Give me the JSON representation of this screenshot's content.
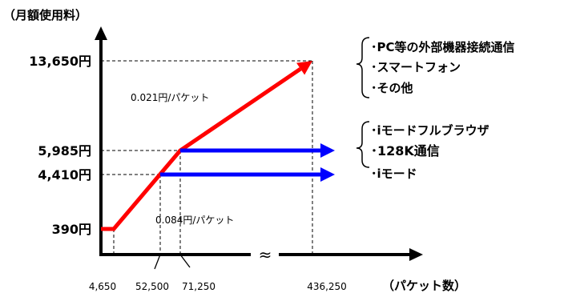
{
  "chart_data": {
    "type": "line",
    "ylabel": "（月額使用料）",
    "xlabel": "（パケット数）",
    "x_ticks": [
      {
        "value": 4650,
        "label": "4,650"
      },
      {
        "value": 52500,
        "label": "52,500"
      },
      {
        "value": 71250,
        "label": "71,250"
      },
      {
        "value": 436250,
        "label": "436,250"
      }
    ],
    "y_ticks": [
      {
        "value": 390,
        "label": "390円",
        "color": "#000000"
      },
      {
        "value": 4410,
        "label": "4,410円",
        "color": "#000000"
      },
      {
        "value": 5985,
        "label": "5,985円",
        "color": "#ff0000"
      },
      {
        "value": 13650,
        "label": "13,650円",
        "color": "#000000"
      }
    ],
    "axis_break_symbol": "≈",
    "series": [
      {
        "color": "#ff0000",
        "points": [
          [
            0,
            390
          ],
          [
            4650,
            390
          ],
          [
            71250,
            5985
          ],
          [
            436250,
            13650
          ]
        ],
        "arrow": true
      },
      {
        "color": "#0000ff",
        "points": [
          [
            71250,
            5985
          ],
          [
            480000,
            5985
          ]
        ],
        "arrow": true
      },
      {
        "color": "#0000ff",
        "points": [
          [
            52500,
            4410
          ],
          [
            480000,
            4410
          ]
        ],
        "arrow": true
      }
    ],
    "annotations": [
      {
        "text": "0.021円/パケット"
      },
      {
        "text": "0.084円/パケット"
      }
    ],
    "groups": [
      {
        "items": [
          "･PC等の外部機器接続通信",
          "･スマートフォン",
          "･その他"
        ]
      },
      {
        "items": [
          "･iモードフルブラウザ",
          "･128K通信"
        ]
      },
      {
        "items": [
          "･iモード"
        ]
      }
    ]
  }
}
